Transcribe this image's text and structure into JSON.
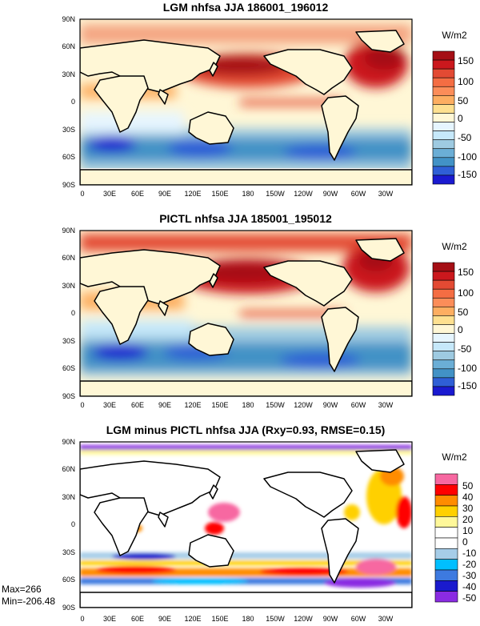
{
  "chart_data": [
    {
      "type": "heatmap",
      "title": "LGM nhfsa JJA 186001_196012",
      "units": "W/m2",
      "x_ticks": [
        "0",
        "30E",
        "60E",
        "90E",
        "120E",
        "150E",
        "180",
        "150W",
        "120W",
        "90W",
        "60W",
        "30W"
      ],
      "y_ticks": [
        "90N",
        "60N",
        "30N",
        "0",
        "30S",
        "60S",
        "90S"
      ],
      "colorbar_levels": [
        "150",
        "100",
        "50",
        "0",
        "-50",
        "-100",
        "-150"
      ],
      "colors": [
        "#a50f15",
        "#cb181d",
        "#e34a33",
        "#f46d43",
        "#fc8d59",
        "#fdae61",
        "#fee090",
        "#fff7d6",
        "#e6f5ff",
        "#c6e8fa",
        "#9ecae1",
        "#6baed6",
        "#4292c6",
        "#2f5fd6",
        "#1a1ad0"
      ],
      "fields": {
        "pacific_warm": 110,
        "atlantic_warm": 120,
        "equatorial_band": 40,
        "southern_cool": -120,
        "tropical_land": 0
      }
    },
    {
      "type": "heatmap",
      "title": "PICTL nhfsa JJA 185001_195012",
      "units": "W/m2",
      "x_ticks": [
        "0",
        "30E",
        "60E",
        "90E",
        "120E",
        "150E",
        "180",
        "150W",
        "120W",
        "90W",
        "60W",
        "30W"
      ],
      "y_ticks": [
        "90N",
        "60N",
        "30N",
        "0",
        "30S",
        "60S",
        "90S"
      ],
      "colorbar_levels": [
        "150",
        "100",
        "50",
        "0",
        "-50",
        "-100",
        "-150"
      ],
      "colors": [
        "#a50f15",
        "#cb181d",
        "#e34a33",
        "#f46d43",
        "#fc8d59",
        "#fdae61",
        "#fee090",
        "#fff7d6",
        "#e6f5ff",
        "#c6e8fa",
        "#9ecae1",
        "#6baed6",
        "#4292c6",
        "#2f5fd6",
        "#1a1ad0"
      ],
      "fields": {
        "pacific_warm": 120,
        "atlantic_warm": 130,
        "equatorial_band": 45,
        "southern_cool": -120,
        "tropical_land": 0
      }
    },
    {
      "type": "heatmap",
      "title": "LGM minus PICTL nhfsa JJA (Rxy=0.93, RMSE=0.15)",
      "units": "W/m2",
      "x_ticks": [
        "0",
        "30E",
        "60E",
        "90E",
        "120E",
        "150E",
        "180",
        "150W",
        "120W",
        "90W",
        "60W",
        "30W"
      ],
      "y_ticks": [
        "90N",
        "60N",
        "30N",
        "0",
        "30S",
        "60S",
        "90S"
      ],
      "colorbar_levels": [
        "50",
        "40",
        "30",
        "20",
        "10",
        "0",
        "-10",
        "-20",
        "-30",
        "-40",
        "-50"
      ],
      "colors": [
        "#f768a1",
        "#ff0000",
        "#ff8c00",
        "#ffd000",
        "#fff89a",
        "#ffffff",
        "#ffffff",
        "#a6cde8",
        "#00bfff",
        "#3d7ae0",
        "#1a1acd",
        "#8a2be2"
      ],
      "max_label": "Max=266",
      "min_label": "Min=-206.48"
    }
  ]
}
